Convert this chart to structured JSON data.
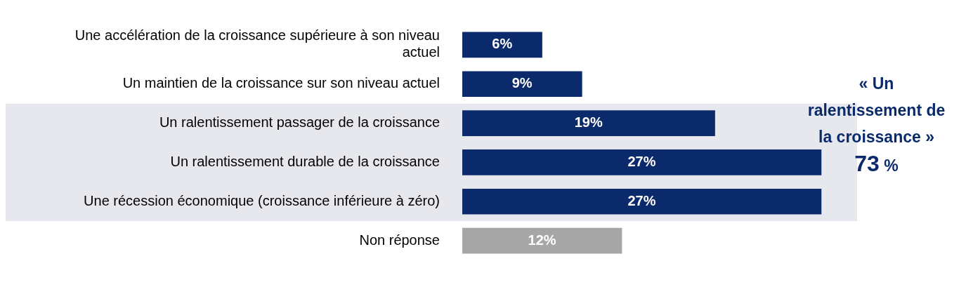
{
  "chart_data": {
    "type": "bar",
    "orientation": "horizontal",
    "categories": [
      "Une accélération de la croissance supérieure à son niveau actuel",
      "Un maintien de la croissance sur son niveau actuel",
      "Un ralentissement passager de la croissance",
      "Un ralentissement durable de la croissance",
      "Une récession économique (croissance inférieure à zéro)",
      "Non réponse"
    ],
    "values": [
      6,
      9,
      19,
      27,
      27,
      12
    ],
    "value_labels": [
      "6%",
      "9%",
      "19%",
      "27%",
      "27%",
      "12%"
    ],
    "colors": [
      "#0b2a6b",
      "#0b2a6b",
      "#0b2a6b",
      "#0b2a6b",
      "#0b2a6b",
      "#a6a6a6"
    ],
    "bands": [
      {
        "axis": "y",
        "from": "Un ralentissement passager de la croissance",
        "to": "Une récession économique (croissance inférieure à zéro)",
        "label": "« Un ralentissement de la croissance » 73 %",
        "color": "#e7e8ee"
      }
    ],
    "legend": false
  }
}
